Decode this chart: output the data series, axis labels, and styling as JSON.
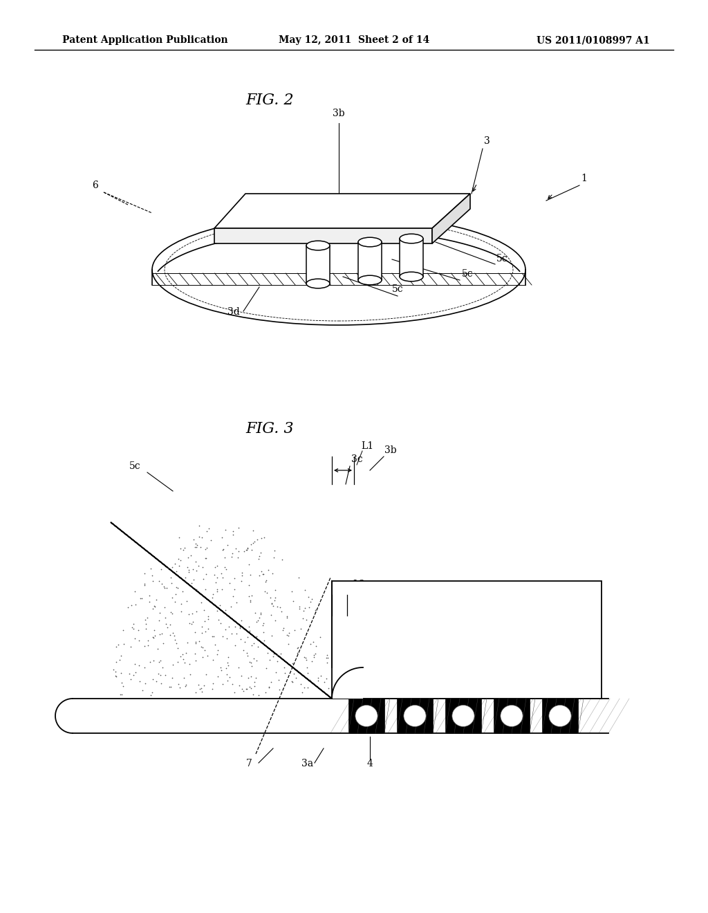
{
  "background_color": "#ffffff",
  "header_left": "Patent Application Publication",
  "header_middle": "May 12, 2011  Sheet 2 of 14",
  "header_right": "US 2011/0108997 A1",
  "fig2_title": "FIG. 2",
  "fig3_title": "FIG. 3",
  "page_width": 10.24,
  "page_height": 13.2,
  "dpi": 100
}
